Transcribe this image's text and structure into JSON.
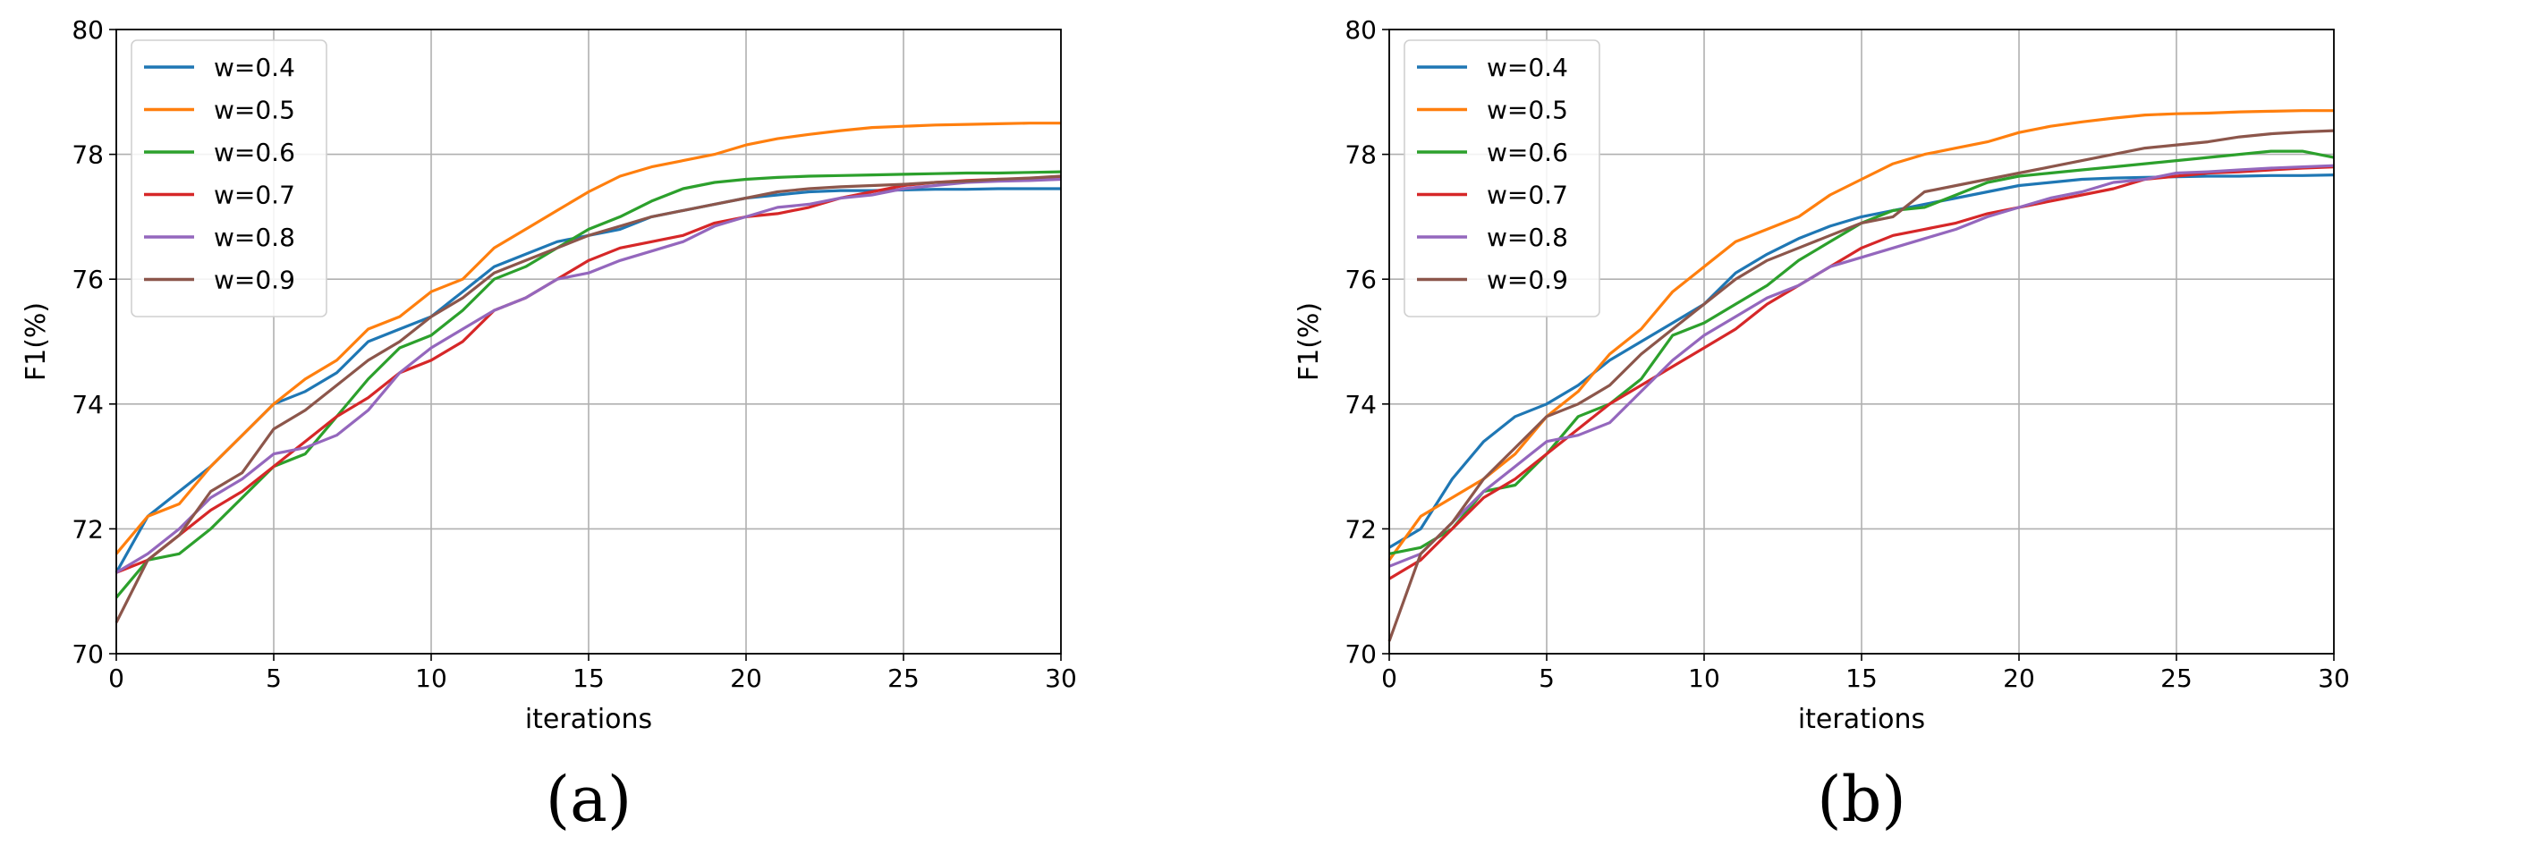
{
  "colors": {
    "w=0.4": "#1f77b4",
    "w=0.5": "#ff7f0e",
    "w=0.6": "#2ca02c",
    "w=0.7": "#d62728",
    "w=0.8": "#9467bd",
    "w=0.9": "#8c564b"
  },
  "chart_data": [
    {
      "panel": "(a)",
      "type": "line",
      "xlabel": "iterations",
      "ylabel": "F1(%)",
      "xlim": [
        0,
        30
      ],
      "ylim": [
        70,
        80
      ],
      "xticks": [
        0,
        5,
        10,
        15,
        20,
        25,
        30
      ],
      "yticks": [
        70,
        72,
        74,
        76,
        78,
        80
      ],
      "grid": true,
      "legend_position": "top-left",
      "x": [
        0,
        1,
        2,
        3,
        4,
        5,
        6,
        7,
        8,
        9,
        10,
        11,
        12,
        13,
        14,
        15,
        16,
        17,
        18,
        19,
        20,
        21,
        22,
        23,
        24,
        25,
        26,
        27,
        28,
        29,
        30
      ],
      "series": [
        {
          "name": "w=0.4",
          "values": [
            71.3,
            72.2,
            72.6,
            73.0,
            73.5,
            74.0,
            74.2,
            74.5,
            75.0,
            75.2,
            75.4,
            75.8,
            76.2,
            76.4,
            76.6,
            76.7,
            76.8,
            77.0,
            77.1,
            77.2,
            77.3,
            77.35,
            77.4,
            77.42,
            77.42,
            77.43,
            77.44,
            77.44,
            77.45,
            77.45,
            77.45
          ]
        },
        {
          "name": "w=0.5",
          "values": [
            71.6,
            72.2,
            72.4,
            73.0,
            73.5,
            74.0,
            74.4,
            74.7,
            75.2,
            75.4,
            75.8,
            76.0,
            76.5,
            76.8,
            77.1,
            77.4,
            77.65,
            77.8,
            77.9,
            78.0,
            78.15,
            78.25,
            78.32,
            78.38,
            78.43,
            78.45,
            78.47,
            78.48,
            78.49,
            78.5,
            78.5
          ]
        },
        {
          "name": "w=0.6",
          "values": [
            70.9,
            71.5,
            71.6,
            72.0,
            72.5,
            73.0,
            73.2,
            73.8,
            74.4,
            74.9,
            75.1,
            75.5,
            76.0,
            76.2,
            76.5,
            76.8,
            77.0,
            77.25,
            77.45,
            77.55,
            77.6,
            77.63,
            77.65,
            77.66,
            77.67,
            77.68,
            77.69,
            77.7,
            77.7,
            77.71,
            77.72
          ]
        },
        {
          "name": "w=0.7",
          "values": [
            71.3,
            71.5,
            71.9,
            72.3,
            72.6,
            73.0,
            73.4,
            73.8,
            74.1,
            74.5,
            74.7,
            75.0,
            75.5,
            75.7,
            76.0,
            76.3,
            76.5,
            76.6,
            76.7,
            76.9,
            77.0,
            77.05,
            77.15,
            77.3,
            77.4,
            77.5,
            77.55,
            77.58,
            77.6,
            77.6,
            77.62
          ]
        },
        {
          "name": "w=0.8",
          "values": [
            71.3,
            71.6,
            72.0,
            72.5,
            72.8,
            73.2,
            73.3,
            73.5,
            73.9,
            74.5,
            74.9,
            75.2,
            75.5,
            75.7,
            76.0,
            76.1,
            76.3,
            76.45,
            76.6,
            76.85,
            77.0,
            77.15,
            77.2,
            77.3,
            77.35,
            77.45,
            77.5,
            77.55,
            77.57,
            77.58,
            77.6
          ]
        },
        {
          "name": "w=0.9",
          "values": [
            70.5,
            71.5,
            71.9,
            72.6,
            72.9,
            73.6,
            73.9,
            74.3,
            74.7,
            75.0,
            75.4,
            75.7,
            76.1,
            76.3,
            76.5,
            76.7,
            76.85,
            77.0,
            77.1,
            77.2,
            77.3,
            77.4,
            77.45,
            77.48,
            77.5,
            77.52,
            77.55,
            77.57,
            77.6,
            77.62,
            77.65
          ]
        }
      ]
    },
    {
      "panel": "(b)",
      "type": "line",
      "xlabel": "iterations",
      "ylabel": "F1(%)",
      "xlim": [
        0,
        30
      ],
      "ylim": [
        70,
        80
      ],
      "xticks": [
        0,
        5,
        10,
        15,
        20,
        25,
        30
      ],
      "yticks": [
        70,
        72,
        74,
        76,
        78,
        80
      ],
      "grid": true,
      "legend_position": "top-left",
      "x": [
        0,
        1,
        2,
        3,
        4,
        5,
        6,
        7,
        8,
        9,
        10,
        11,
        12,
        13,
        14,
        15,
        16,
        17,
        18,
        19,
        20,
        21,
        22,
        23,
        24,
        25,
        26,
        27,
        28,
        29,
        30
      ],
      "series": [
        {
          "name": "w=0.4",
          "values": [
            71.7,
            72.0,
            72.8,
            73.4,
            73.8,
            74.0,
            74.3,
            74.7,
            75.0,
            75.3,
            75.6,
            76.1,
            76.4,
            76.65,
            76.85,
            77.0,
            77.1,
            77.2,
            77.3,
            77.4,
            77.5,
            77.55,
            77.6,
            77.62,
            77.63,
            77.64,
            77.65,
            77.65,
            77.66,
            77.66,
            77.67
          ]
        },
        {
          "name": "w=0.5",
          "values": [
            71.5,
            72.2,
            72.5,
            72.8,
            73.2,
            73.8,
            74.2,
            74.8,
            75.2,
            75.8,
            76.2,
            76.6,
            76.8,
            77.0,
            77.35,
            77.6,
            77.85,
            78.0,
            78.1,
            78.2,
            78.35,
            78.45,
            78.52,
            78.58,
            78.63,
            78.65,
            78.66,
            78.68,
            78.69,
            78.7,
            78.7
          ]
        },
        {
          "name": "w=0.6",
          "values": [
            71.6,
            71.7,
            72.0,
            72.6,
            72.7,
            73.2,
            73.8,
            74.0,
            74.4,
            75.1,
            75.3,
            75.6,
            75.9,
            76.3,
            76.6,
            76.9,
            77.1,
            77.15,
            77.35,
            77.55,
            77.65,
            77.7,
            77.75,
            77.8,
            77.85,
            77.9,
            77.95,
            78.0,
            78.05,
            78.05,
            77.95
          ]
        },
        {
          "name": "w=0.7",
          "values": [
            71.2,
            71.5,
            72.0,
            72.5,
            72.8,
            73.2,
            73.6,
            74.0,
            74.3,
            74.6,
            74.9,
            75.2,
            75.6,
            75.9,
            76.2,
            76.5,
            76.7,
            76.8,
            76.9,
            77.05,
            77.15,
            77.25,
            77.35,
            77.45,
            77.6,
            77.65,
            77.7,
            77.72,
            77.75,
            77.78,
            77.8
          ]
        },
        {
          "name": "w=0.8",
          "values": [
            71.4,
            71.6,
            72.1,
            72.6,
            73.0,
            73.4,
            73.5,
            73.7,
            74.2,
            74.7,
            75.1,
            75.4,
            75.7,
            75.9,
            76.2,
            76.35,
            76.5,
            76.65,
            76.8,
            77.0,
            77.15,
            77.3,
            77.4,
            77.55,
            77.6,
            77.7,
            77.72,
            77.75,
            77.78,
            77.8,
            77.82
          ]
        },
        {
          "name": "w=0.9",
          "values": [
            70.2,
            71.6,
            72.1,
            72.8,
            73.3,
            73.8,
            74.0,
            74.3,
            74.8,
            75.2,
            75.6,
            76.0,
            76.3,
            76.5,
            76.7,
            76.9,
            77.0,
            77.4,
            77.5,
            77.6,
            77.7,
            77.8,
            77.9,
            78.0,
            78.1,
            78.15,
            78.2,
            78.28,
            78.33,
            78.36,
            78.38
          ]
        }
      ]
    }
  ]
}
